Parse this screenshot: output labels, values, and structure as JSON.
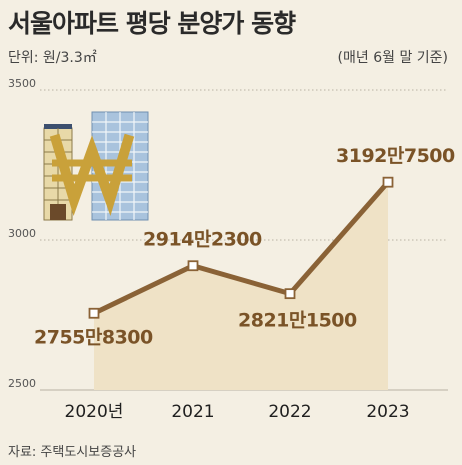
{
  "header": {
    "title": "서울아파트 평당 분양가 동향",
    "unit": "단위: 원/3.3㎡",
    "basis": "(매년 6월 말 기준)"
  },
  "footer": {
    "source": "자료: 주택도시보증공사"
  },
  "chart_data": {
    "type": "line",
    "title": "서울아파트 평당 분양가 동향",
    "categories": [
      "2020년",
      "2021",
      "2022",
      "2023"
    ],
    "values": [
      27558300,
      29142300,
      28211500,
      31927500
    ],
    "data_labels": [
      "2755만8300",
      "2914만2300",
      "2821만1500",
      "3192만7500"
    ],
    "y_ticks": [
      {
        "value": 25000000,
        "label": "2500"
      },
      {
        "value": 30000000,
        "label": "3000"
      },
      {
        "value": 35000000,
        "label": "3500"
      }
    ],
    "ylim": [
      25000000,
      35000000
    ],
    "grid": true,
    "area_fill": true,
    "colors": {
      "line": "#8a6236",
      "area": "#efe2c6",
      "background": "#f4efe3",
      "label": "#7a5327",
      "icon_gold": "#c9a13a",
      "building_blue": "#a9c3dd"
    },
    "icon": "won-sign-with-apartment-buildings"
  }
}
